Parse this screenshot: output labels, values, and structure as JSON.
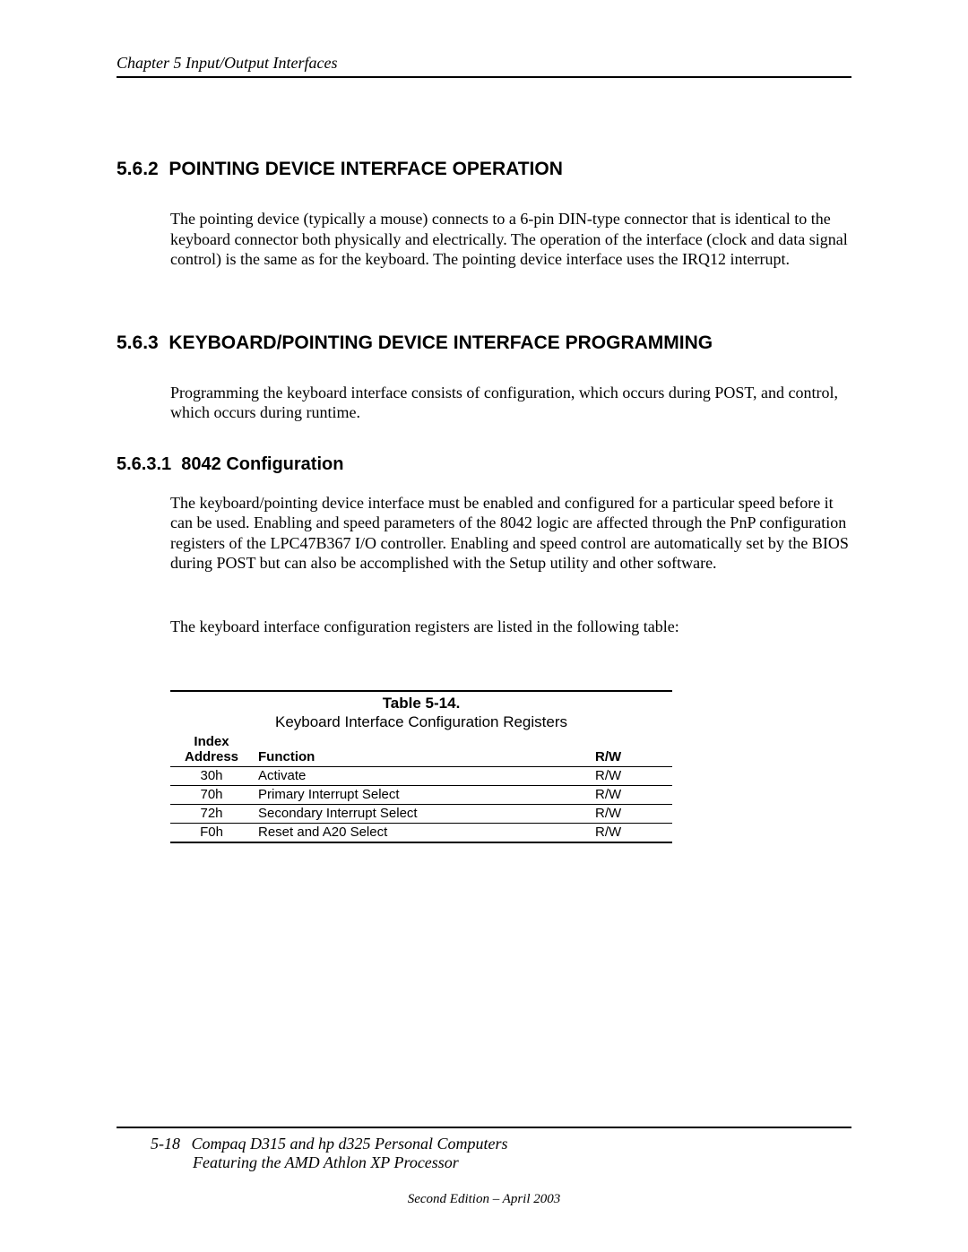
{
  "header": {
    "text": "Chapter 5  Input/Output Interfaces"
  },
  "section1": {
    "number": "5.6.2",
    "title": "POINTING DEVICE INTERFACE OPERATION",
    "para1": "The pointing device (typically a mouse) connects to a 6-pin DIN-type connector that is identical to the keyboard connector both physically and electrically. The operation of the interface (clock and data signal control) is the same as for the keyboard. The pointing device interface uses the  IRQ12 interrupt."
  },
  "section2": {
    "number": "5.6.3",
    "title": "KEYBOARD/POINTING DEVICE  INTERFACE PROGRAMMING",
    "para1": "Programming the keyboard interface consists of configuration, which occurs during POST, and control, which occurs during runtime."
  },
  "subsection": {
    "number": "5.6.3.1",
    "title": "8042 Configuration",
    "para1": "The keyboard/pointing device interface must be enabled and configured for a particular speed before it can be used. Enabling and speed parameters of the 8042 logic are affected through the PnP configuration registers of the LPC47B367 I/O controller. Enabling and speed control are automatically set by the BIOS during POST but can also be accomplished with the Setup utility and other software.",
    "para2": "The keyboard interface configuration registers are listed in the following table:"
  },
  "table": {
    "label": "Table 5-14.",
    "caption": "Keyboard Interface Configuration Registers",
    "columns": {
      "c0_line1": "Index",
      "c0_line2": "Address",
      "c1": "Function",
      "c2": "R/W"
    },
    "rows": [
      {
        "addr": "30h",
        "func": "Activate",
        "rw": "R/W"
      },
      {
        "addr": "70h",
        "func": "Primary Interrupt Select",
        "rw": "R/W"
      },
      {
        "addr": "72h",
        "func": "Secondary Interrupt Select",
        "rw": "R/W"
      },
      {
        "addr": "F0h",
        "func": "Reset and A20 Select",
        "rw": "R/W"
      }
    ]
  },
  "footer": {
    "pagenum": "5-18",
    "line1_rest": "Compaq D315 and hp d325 Personal Computers",
    "line2": "Featuring the AMD Athlon XP Processor",
    "edition": "Second Edition – April 2003"
  }
}
